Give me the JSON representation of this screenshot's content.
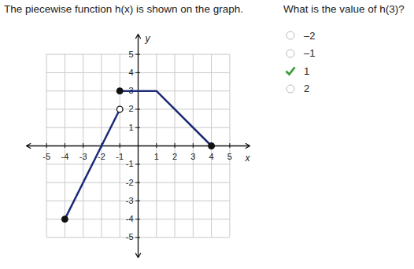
{
  "header": "The piecewise function h(x) is shown on the graph.",
  "question": "What is the value of h(3)?",
  "options": [
    {
      "label": "–2"
    },
    {
      "label": "–1"
    },
    {
      "label": "1",
      "correct": true
    },
    {
      "label": "2"
    }
  ],
  "chart_data": {
    "type": "line",
    "xlabel": "x",
    "ylabel": "y",
    "xlim": [
      -6.1,
      6.1
    ],
    "ylim": [
      -6.1,
      6.1
    ],
    "xticks": [
      -5,
      -4,
      -3,
      -2,
      -1,
      1,
      2,
      3,
      4,
      5
    ],
    "yticks": [
      -5,
      -4,
      -3,
      -2,
      -1,
      1,
      2,
      3,
      4,
      5
    ],
    "grid": true,
    "series": [
      {
        "type": "line",
        "color": "#1c2a78",
        "x": [
          -4,
          -1
        ],
        "values": [
          -4,
          2
        ]
      },
      {
        "type": "line",
        "color": "#1c2a78",
        "x": [
          -1,
          1,
          4
        ],
        "values": [
          3,
          3,
          0
        ]
      },
      {
        "type": "scatter",
        "marker": "filled",
        "color": "#111111",
        "x": [
          -4,
          -1,
          4
        ],
        "values": [
          -4,
          3,
          0
        ]
      },
      {
        "type": "scatter",
        "marker": "open",
        "color": "#111111",
        "x": [
          -1
        ],
        "values": [
          2
        ]
      }
    ]
  }
}
